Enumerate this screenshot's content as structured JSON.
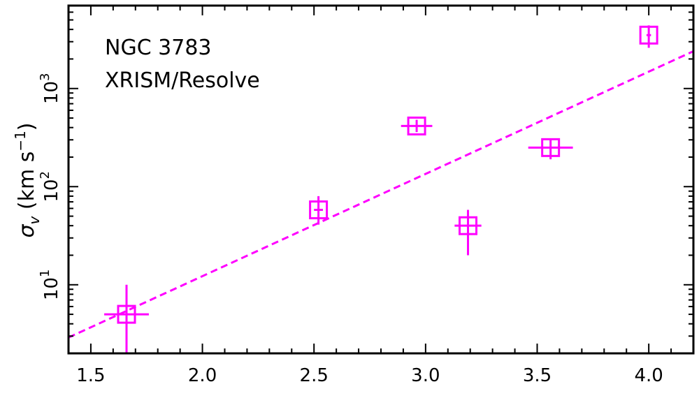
{
  "chart_data": {
    "type": "scatter",
    "annotations": [
      "NGC 3783",
      "XRISM/Resolve"
    ],
    "xlabel": "",
    "ylabel": {
      "symbol": "σ",
      "subscript": "v",
      "unit": " (km s",
      "exp": "−1",
      "close": ")"
    },
    "xlim": [
      1.4,
      4.2
    ],
    "ylim": [
      2.0,
      7000
    ],
    "yscale": "log",
    "x_ticks": [
      "1.5",
      "2.0",
      "2.5",
      "3.0",
      "3.5",
      "4.0"
    ],
    "y_ticks": [
      {
        "base": "10",
        "exp": "1"
      },
      {
        "base": "10",
        "exp": "2"
      },
      {
        "base": "10",
        "exp": "3"
      }
    ],
    "grid": false,
    "color": "#ff00ff",
    "points": [
      {
        "x": 1.66,
        "y": 5,
        "xerr": [
          0.1,
          0.1
        ],
        "yerr_low": 2.0,
        "yerr_high": 10
      },
      {
        "x": 2.52,
        "y": 58,
        "xerr": [
          0.02,
          0.02
        ],
        "yerr_low": 41,
        "yerr_high": 80
      },
      {
        "x": 2.96,
        "y": 415,
        "xerr": [
          0.07,
          0.07
        ],
        "yerr_low": 360,
        "yerr_high": 480
      },
      {
        "x": 3.19,
        "y": 40,
        "xerr": [
          0.06,
          0.06
        ],
        "yerr_low": 20,
        "yerr_high": 58
      },
      {
        "x": 3.56,
        "y": 250,
        "xerr": [
          0.1,
          0.1
        ],
        "yerr_low": 190,
        "yerr_high": 300
      },
      {
        "x": 4.0,
        "y": 3500,
        "xerr": [
          0.01,
          0.01
        ],
        "yerr_low": 2600,
        "yerr_high": 4400
      }
    ],
    "fit_line": {
      "style": "dashed",
      "x": [
        1.4,
        4.2
      ],
      "y": [
        2.9,
        2400
      ]
    }
  }
}
